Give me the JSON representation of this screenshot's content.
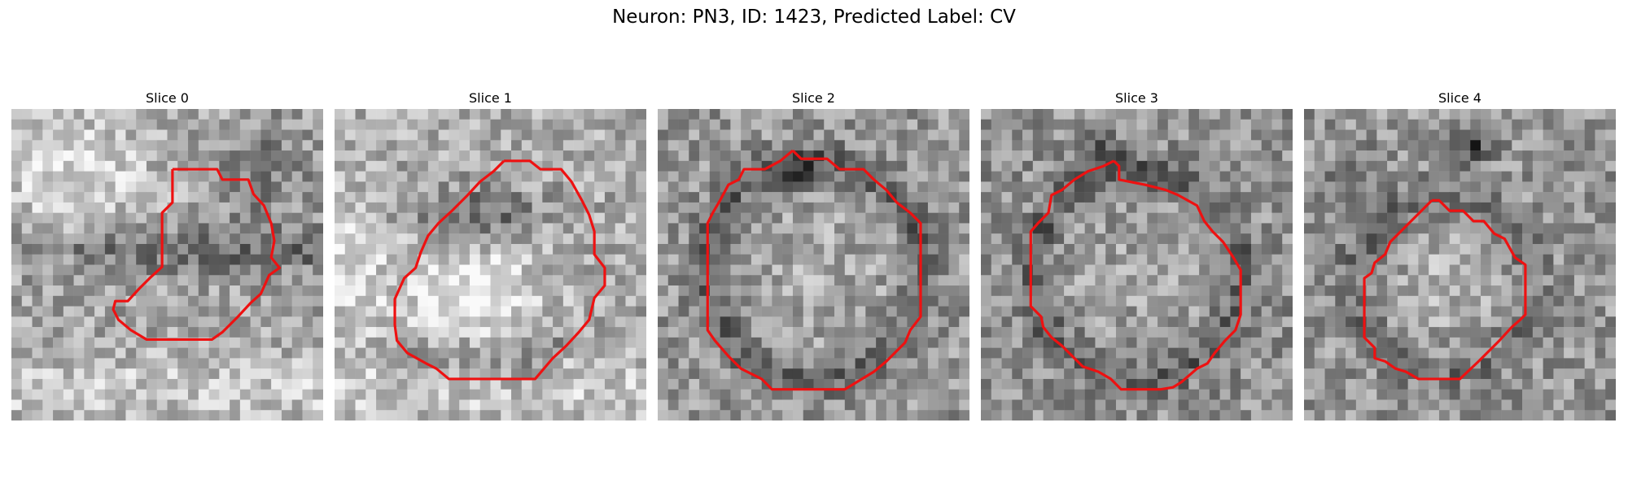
{
  "figure": {
    "title": "Neuron: PN3, ID: 1423, Predicted Label: CV"
  },
  "panels": [
    {
      "title": "Slice 0",
      "image_description": "grayscale microscopy patch with mottled texture",
      "contour_color": "#ee1111"
    },
    {
      "title": "Slice 1",
      "image_description": "grayscale microscopy patch with bright blob in lower center",
      "contour_color": "#ee1111"
    },
    {
      "title": "Slice 2",
      "image_description": "grayscale microscopy patch with round dark-bordered cell",
      "contour_color": "#ee1111"
    },
    {
      "title": "Slice 3",
      "image_description": "grayscale microscopy patch with round cell",
      "contour_color": "#ee1111"
    },
    {
      "title": "Slice 4",
      "image_description": "grayscale microscopy patch with smaller round cell",
      "contour_color": "#ee1111"
    }
  ]
}
